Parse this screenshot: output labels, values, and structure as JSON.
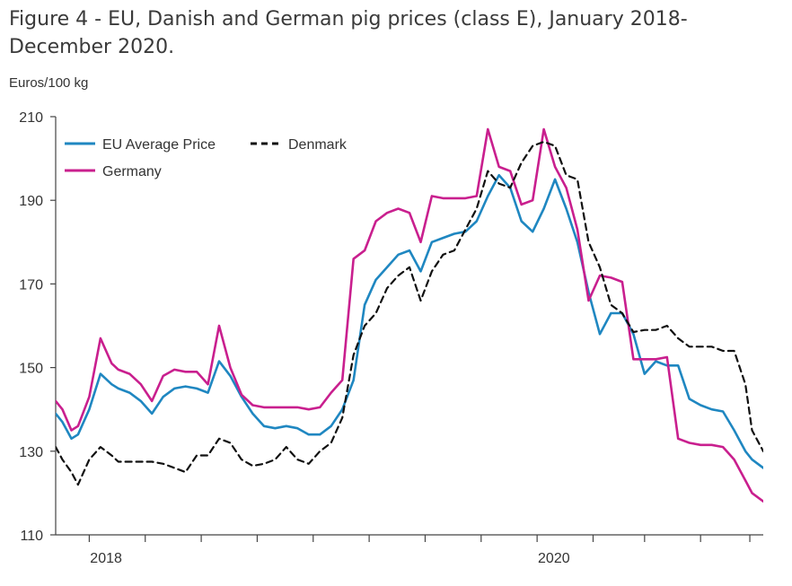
{
  "chart_data": {
    "type": "line",
    "title": "Figure 4 - EU, Danish and German pig prices (class E), January 2018-December 2020.",
    "ylabel": "Euros/100 kg",
    "xlabel": "",
    "ylim": [
      110,
      210
    ],
    "yticks": [
      "110",
      "130",
      "150",
      "170",
      "190",
      "210"
    ],
    "xticks": [
      {
        "label": "2018",
        "x": 0.75
      },
      {
        "label": "2020",
        "x": 20.75
      }
    ],
    "x_range": [
      -1.5,
      30.1
    ],
    "x_minor": [
      0,
      2.5,
      5,
      7.5,
      10,
      12.5,
      15,
      17.5,
      20,
      22.5,
      24.8,
      27.3,
      29.5
    ],
    "grid": false,
    "legend": "top-left",
    "colors": {
      "EU Average Price": "#1f87c1",
      "Germany": "#c91f8e",
      "Denmark": "#111111"
    },
    "series": [
      {
        "name": "EU Average Price",
        "style": "solid",
        "x": [
          -1.5,
          -1.2,
          -0.8,
          -0.5,
          0,
          0.5,
          1,
          1.3,
          1.8,
          2.3,
          2.8,
          3.3,
          3.8,
          4.3,
          4.8,
          5.3,
          5.8,
          6.3,
          6.8,
          7.3,
          7.8,
          8.3,
          8.8,
          9.3,
          9.8,
          10.3,
          10.8,
          11.3,
          11.8,
          12.3,
          12.8,
          13.3,
          13.8,
          14.3,
          14.8,
          15.3,
          15.8,
          16.3,
          16.8,
          17.3,
          17.8,
          18.3,
          18.8,
          19.3,
          19.8,
          20.3,
          20.8,
          21.3,
          21.8,
          22.3,
          22.8,
          23.3,
          23.8,
          24.3,
          24.8,
          25.3,
          25.8,
          26.3,
          26.8,
          27.3,
          27.8,
          28.3,
          28.8,
          29.3,
          29.6,
          30.1
        ],
        "values": [
          139,
          137,
          133,
          134,
          140,
          148.5,
          146,
          145,
          144,
          142,
          139,
          143,
          145,
          145.5,
          145,
          144,
          151.5,
          148,
          143,
          139,
          136,
          135.5,
          136,
          135.5,
          134,
          134,
          136,
          140,
          147,
          165,
          171,
          174,
          177,
          178,
          173,
          180,
          181,
          182,
          182.5,
          185,
          191,
          196,
          193,
          185,
          182.5,
          188,
          195,
          188,
          180,
          168,
          158,
          163,
          163,
          158,
          148.5,
          151.5,
          150.5,
          150.5,
          142.5,
          141,
          140,
          139.5,
          135,
          130,
          128,
          126
        ]
      },
      {
        "name": "Germany",
        "style": "solid",
        "x": [
          -1.5,
          -1.2,
          -0.8,
          -0.5,
          0,
          0.5,
          1,
          1.3,
          1.8,
          2.3,
          2.8,
          3.3,
          3.8,
          4.3,
          4.8,
          5.3,
          5.8,
          6.3,
          6.8,
          7.3,
          7.8,
          8.3,
          8.8,
          9.3,
          9.8,
          10.3,
          10.8,
          11.3,
          11.8,
          12.3,
          12.8,
          13.3,
          13.8,
          14.3,
          14.8,
          15.3,
          15.8,
          16.3,
          16.8,
          17.3,
          17.8,
          18.3,
          18.8,
          19.3,
          19.8,
          20.3,
          20.8,
          21.3,
          21.8,
          22.3,
          22.8,
          23.3,
          23.8,
          24.3,
          24.8,
          25.3,
          25.8,
          26.3,
          26.8,
          27.3,
          27.8,
          28.3,
          28.8,
          29.3,
          29.6,
          30.1
        ],
        "values": [
          142,
          140,
          135,
          136,
          143,
          157,
          151,
          149.5,
          148.5,
          146,
          142,
          148,
          149.5,
          149,
          149,
          146,
          160,
          150,
          143.5,
          141,
          140.5,
          140.5,
          140.5,
          140.5,
          140,
          140.5,
          144,
          147,
          176,
          178,
          185,
          187,
          188,
          187,
          180,
          191,
          190.5,
          190.5,
          190.5,
          191,
          207,
          198,
          197,
          189,
          190,
          207,
          198,
          193,
          183,
          166,
          172,
          171.5,
          170.5,
          152,
          152,
          152,
          152.5,
          133,
          132,
          131.5,
          131.5,
          131,
          128,
          123,
          120,
          118
        ]
      },
      {
        "name": "Denmark",
        "style": "dashed",
        "x": [
          -1.5,
          -1.2,
          -0.8,
          -0.5,
          0,
          0.5,
          1,
          1.3,
          1.8,
          2.3,
          2.8,
          3.3,
          3.8,
          4.3,
          4.8,
          5.3,
          5.8,
          6.3,
          6.8,
          7.3,
          7.8,
          8.3,
          8.8,
          9.3,
          9.8,
          10.3,
          10.8,
          11.3,
          11.8,
          12.3,
          12.8,
          13.3,
          13.8,
          14.3,
          14.8,
          15.3,
          15.8,
          16.3,
          16.8,
          17.3,
          17.8,
          18.3,
          18.8,
          19.3,
          19.8,
          20.3,
          20.8,
          21.3,
          21.8,
          22.3,
          22.8,
          23.3,
          23.8,
          24.3,
          24.8,
          25.3,
          25.8,
          26.3,
          26.8,
          27.3,
          27.8,
          28.3,
          28.8,
          29.3,
          29.6,
          30.1
        ],
        "values": [
          131,
          128,
          125,
          122,
          128,
          131,
          129,
          127.5,
          127.5,
          127.5,
          127.5,
          127,
          126,
          125,
          129,
          129,
          133,
          132,
          128,
          126.5,
          127,
          128,
          131,
          128,
          127,
          130,
          132,
          138,
          153,
          160,
          163,
          169,
          172,
          174,
          166,
          173,
          177,
          178,
          183,
          188,
          197,
          194,
          193,
          199,
          203,
          204,
          203,
          196,
          195,
          180,
          174,
          165,
          163,
          158.5,
          159,
          159,
          160,
          157,
          155,
          155,
          155,
          154,
          154,
          146,
          135,
          130
        ]
      }
    ]
  }
}
